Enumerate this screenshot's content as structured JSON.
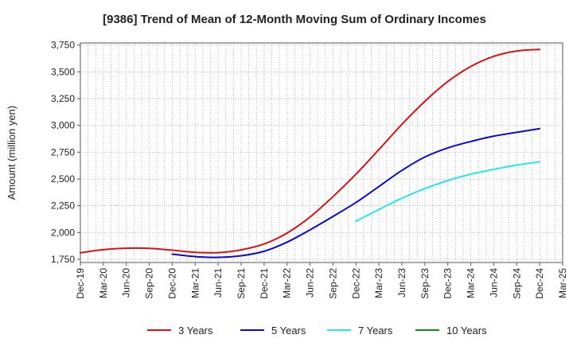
{
  "chart_data": {
    "type": "line",
    "title": "[9386]  Trend of Mean of 12-Month Moving Sum of Ordinary Incomes",
    "xlabel": "",
    "ylabel": "Amount (million yen)",
    "ylim": [
      1720,
      3770
    ],
    "yticks": [
      1750,
      2000,
      2250,
      2500,
      2750,
      3000,
      3250,
      3500,
      3750
    ],
    "ytick_labels": [
      "1,750",
      "2,000",
      "2,250",
      "2,500",
      "2,750",
      "3,000",
      "3,250",
      "3,500",
      "3,750"
    ],
    "x_tick_labels": [
      "Dec-19",
      "Mar-20",
      "Jun-20",
      "Sep-20",
      "Dec-20",
      "Mar-21",
      "Jun-21",
      "Sep-21",
      "Dec-21",
      "Mar-22",
      "Jun-22",
      "Sep-22",
      "Dec-22",
      "Mar-23",
      "Jun-23",
      "Sep-23",
      "Dec-23",
      "Mar-24",
      "Jun-24",
      "Sep-24",
      "Dec-24",
      "Mar-25"
    ],
    "grid": true,
    "legend_position": "bottom",
    "series": [
      {
        "name": "3 Years",
        "color": "#dd1111",
        "start_index": 0,
        "values": [
          1810,
          1840,
          1853,
          1852,
          1835,
          1815,
          1812,
          1838,
          1893,
          1995,
          2145,
          2335,
          2545,
          2775,
          3010,
          3225,
          3410,
          3550,
          3645,
          3695,
          3710
        ]
      },
      {
        "name": "5 Years",
        "color": "#0a0ad2",
        "start_index": 4,
        "values": [
          1798,
          1775,
          1768,
          1783,
          1825,
          1910,
          2025,
          2150,
          2280,
          2430,
          2580,
          2705,
          2790,
          2850,
          2900,
          2935,
          2970
        ]
      },
      {
        "name": "7 Years",
        "color": "#22e8ef",
        "start_index": 12,
        "values": [
          2105,
          2215,
          2320,
          2410,
          2485,
          2545,
          2590,
          2630,
          2660
        ]
      },
      {
        "name": "10 Years",
        "color": "#1a8a1a",
        "start_index": 21,
        "values": []
      }
    ]
  }
}
